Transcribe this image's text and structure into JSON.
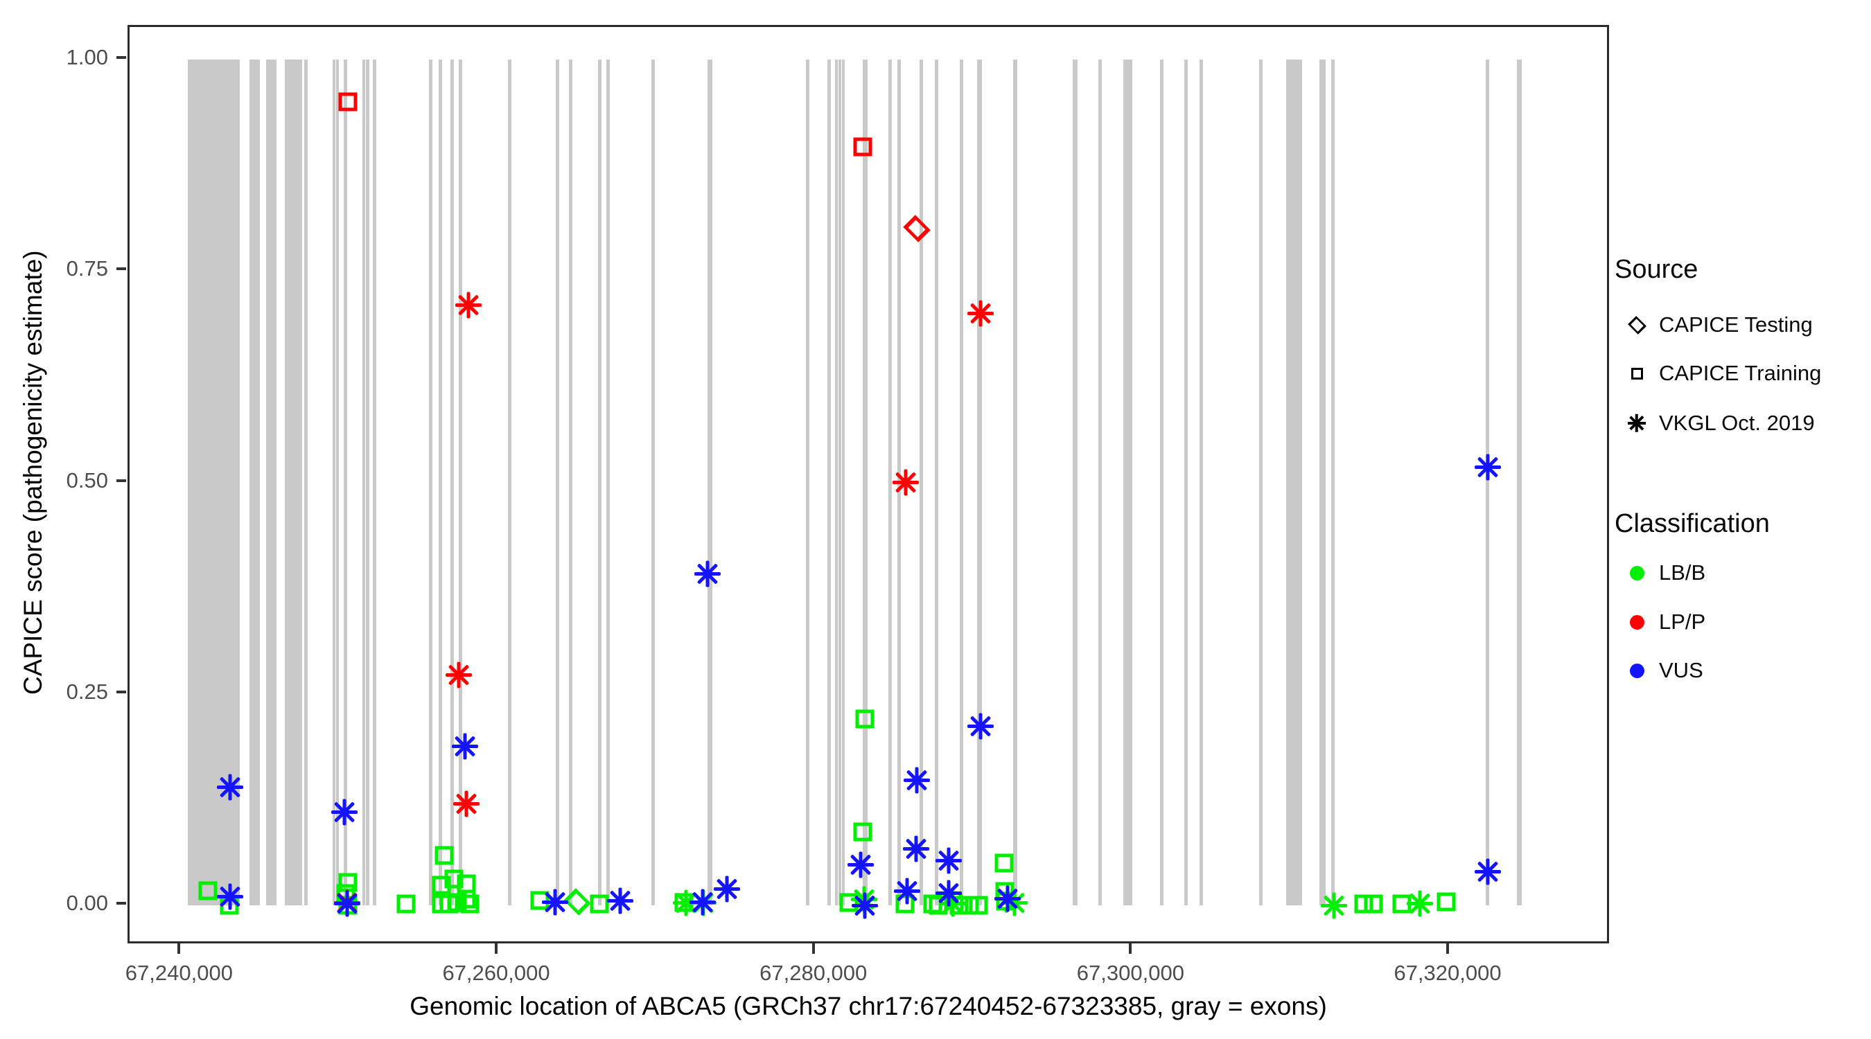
{
  "figure": {
    "x_axis": {
      "title": "Genomic location of ABCA5 (GRCh37 chr17:67240452-67323385, gray = exons)",
      "range": [
        67236750,
        67330180
      ],
      "ticks": [
        {
          "label": "67,240,000",
          "value": 67240000
        },
        {
          "label": "67,260,000",
          "value": 67260000
        },
        {
          "label": "67,280,000",
          "value": 67280000
        },
        {
          "label": "67,300,000",
          "value": 67300000
        },
        {
          "label": "67,320,000",
          "value": 67320000
        }
      ]
    },
    "y_axis": {
      "title": "CAPICE score (pathogenicity estimate)",
      "range": [
        0,
        1
      ],
      "ticks": [
        {
          "label": "1.00",
          "value": 1.0
        },
        {
          "label": "0.75",
          "value": 0.75
        },
        {
          "label": "0.50",
          "value": 0.5
        },
        {
          "label": "0.25",
          "value": 0.25
        },
        {
          "label": "0.00",
          "value": 0.0
        }
      ]
    },
    "legend": {
      "source_title": "Source",
      "source_items": [
        {
          "label": "CAPICE Testing",
          "marker": "diamond"
        },
        {
          "label": "CAPICE Training",
          "marker": "square"
        },
        {
          "label": "VKGL Oct. 2019",
          "marker": "asterisk"
        }
      ],
      "classification_title": "Classification",
      "classification_items": [
        {
          "label": "LB/B",
          "color": "#00ee00"
        },
        {
          "label": "LP/P",
          "color": "#ff0000"
        },
        {
          "label": "VUS",
          "color": "#1414ff"
        }
      ]
    },
    "colors": {
      "LB/B": "#00ee00",
      "LP/P": "#ff0000",
      "VUS": "#1414ff",
      "exon": "#c9c9c9"
    }
  },
  "chart_data": {
    "type": "scatter",
    "title": "",
    "xlabel": "Genomic location of ABCA5 (GRCh37 chr17:67240452-67323385, gray = exons)",
    "ylabel": "CAPICE score (pathogenicity estimate)",
    "xlim": [
      67236750,
      67330180
    ],
    "ylim": [
      0,
      1
    ],
    "grid": false,
    "legend_position": "right",
    "exons_note": "gray vertical bands = exons, [start_bp, width_bp]",
    "exons": [
      [
        67240400,
        3290
      ],
      [
        67244300,
        660
      ],
      [
        67245350,
        660
      ],
      [
        67246530,
        1100
      ],
      [
        67247770,
        200
      ],
      [
        67249560,
        180
      ],
      [
        67249780,
        180
      ],
      [
        67250260,
        220
      ],
      [
        67251450,
        180
      ],
      [
        67251670,
        180
      ],
      [
        67252100,
        220
      ],
      [
        67255610,
        220
      ],
      [
        67256230,
        220
      ],
      [
        67256970,
        220
      ],
      [
        67257500,
        220
      ],
      [
        67260610,
        240
      ],
      [
        67263630,
        220
      ],
      [
        67264470,
        220
      ],
      [
        67266270,
        220
      ],
      [
        67266800,
        220
      ],
      [
        67269650,
        220
      ],
      [
        67273200,
        280
      ],
      [
        67279390,
        220
      ],
      [
        67280750,
        220
      ],
      [
        67281230,
        170
      ],
      [
        67281450,
        170
      ],
      [
        67281670,
        170
      ],
      [
        67283000,
        280
      ],
      [
        67284600,
        220
      ],
      [
        67285180,
        220
      ],
      [
        67286580,
        220
      ],
      [
        67287540,
        220
      ],
      [
        67289120,
        220
      ],
      [
        67290200,
        280
      ],
      [
        67292460,
        280
      ],
      [
        67296230,
        280
      ],
      [
        67297850,
        220
      ],
      [
        67299430,
        540
      ],
      [
        67301710,
        220
      ],
      [
        67303250,
        220
      ],
      [
        67304210,
        220
      ],
      [
        67307980,
        220
      ],
      [
        67309690,
        980
      ],
      [
        67311800,
        360
      ],
      [
        67312520,
        220
      ],
      [
        67322250,
        240
      ],
      [
        67324250,
        280
      ]
    ],
    "series": [
      {
        "name": "CAPICE Training / LB/B",
        "source": "CAPICE Training",
        "classification": "LB/B",
        "marker": "square",
        "color": "#00ee00",
        "points": [
          [
            67241700,
            0.017
          ],
          [
            67243050,
            0.0
          ],
          [
            67250500,
            0.027
          ],
          [
            67250400,
            0.014
          ],
          [
            67250500,
            0.0
          ],
          [
            67254200,
            0.002
          ],
          [
            67256600,
            0.059
          ],
          [
            67256400,
            0.024
          ],
          [
            67257200,
            0.031
          ],
          [
            67258000,
            0.025
          ],
          [
            67256400,
            0.002
          ],
          [
            67256900,
            0.002
          ],
          [
            67257400,
            0.003
          ],
          [
            67258000,
            0.007
          ],
          [
            67258200,
            0.002
          ],
          [
            67262600,
            0.006
          ],
          [
            67266400,
            0.002
          ],
          [
            67271700,
            0.003
          ],
          [
            67283100,
            0.22
          ],
          [
            67283000,
            0.087
          ],
          [
            67282100,
            0.003
          ],
          [
            67285650,
            0.002
          ],
          [
            67287400,
            0.002
          ],
          [
            67287750,
            0.0
          ],
          [
            67289050,
            0.0
          ],
          [
            67289700,
            0.0
          ],
          [
            67290300,
            0.0
          ],
          [
            67291900,
            0.05
          ],
          [
            67291950,
            0.016
          ],
          [
            67292000,
            0.005
          ],
          [
            67314600,
            0.002
          ],
          [
            67315200,
            0.002
          ],
          [
            67317000,
            0.002
          ],
          [
            67319800,
            0.004
          ]
        ]
      },
      {
        "name": "CAPICE Testing / LB/B",
        "source": "CAPICE Testing",
        "classification": "LB/B",
        "marker": "diamond",
        "color": "#00ee00",
        "points": [
          [
            67265000,
            0.004
          ]
        ]
      },
      {
        "name": "VKGL Oct. 2019 / LB/B",
        "source": "VKGL Oct. 2019",
        "classification": "LB/B",
        "marker": "asterisk",
        "color": "#00ee00",
        "points": [
          [
            67271850,
            0.003
          ],
          [
            67272950,
            0.003
          ],
          [
            67283050,
            0.007
          ],
          [
            67288650,
            0.002
          ],
          [
            67292550,
            0.003
          ],
          [
            67312700,
            0.0
          ],
          [
            67318100,
            0.002
          ]
        ]
      },
      {
        "name": "CAPICE Training / LP/P",
        "source": "CAPICE Training",
        "classification": "LP/P",
        "marker": "square",
        "color": "#ff0000",
        "points": [
          [
            67250500,
            0.95
          ],
          [
            67283000,
            0.897
          ]
        ]
      },
      {
        "name": "CAPICE Testing / LP/P",
        "source": "CAPICE Testing",
        "classification": "LP/P",
        "marker": "diamond",
        "color": "#ff0000",
        "points": [
          [
            67286400,
            0.8
          ]
        ]
      },
      {
        "name": "VKGL Oct. 2019 / LP/P",
        "source": "VKGL Oct. 2019",
        "classification": "LP/P",
        "marker": "asterisk",
        "color": "#ff0000",
        "points": [
          [
            67250450,
            0.003
          ],
          [
            67257500,
            0.272
          ],
          [
            67258000,
            0.12
          ],
          [
            67258100,
            0.71
          ],
          [
            67285700,
            0.5
          ],
          [
            67290400,
            0.7
          ]
        ]
      },
      {
        "name": "VKGL Oct. 2019 / VUS",
        "source": "VKGL Oct. 2019",
        "classification": "VUS",
        "marker": "asterisk",
        "color": "#1414ff",
        "points": [
          [
            67243100,
            0.14
          ],
          [
            67243100,
            0.01
          ],
          [
            67250300,
            0.11
          ],
          [
            67250450,
            0.002
          ],
          [
            67257900,
            0.188
          ],
          [
            67263600,
            0.004
          ],
          [
            67267700,
            0.005
          ],
          [
            67272900,
            0.004
          ],
          [
            67273200,
            0.392
          ],
          [
            67274400,
            0.019
          ],
          [
            67282850,
            0.048
          ],
          [
            67283100,
            0.0
          ],
          [
            67285800,
            0.017
          ],
          [
            67286350,
            0.067
          ],
          [
            67286400,
            0.148
          ],
          [
            67288400,
            0.053
          ],
          [
            67288400,
            0.014
          ],
          [
            67290400,
            0.212
          ],
          [
            67292100,
            0.008
          ],
          [
            67322400,
            0.518
          ],
          [
            67322400,
            0.04
          ]
        ]
      }
    ]
  }
}
